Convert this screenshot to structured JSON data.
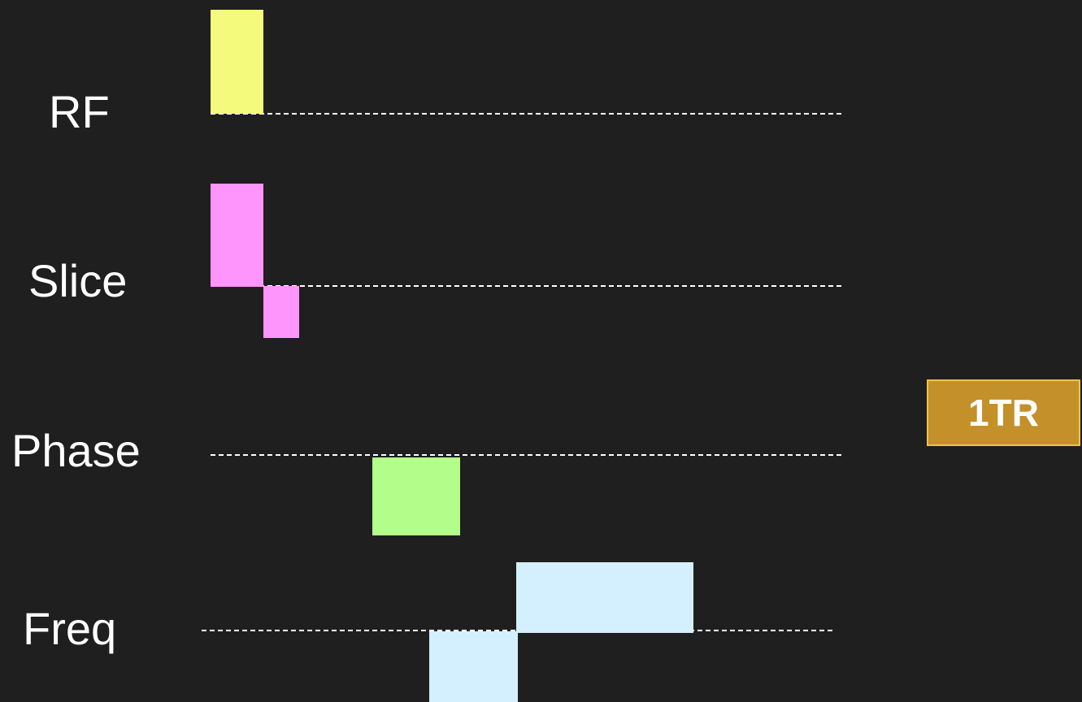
{
  "labels": {
    "rf": "RF",
    "slice": "Slice",
    "phase": "Phase",
    "freq": "Freq"
  },
  "badge": {
    "text": "1TR"
  },
  "colors": {
    "background": "#1f1f1f",
    "rf_pulse": "#f4fa7c",
    "slice_pulse": "#fe95fd",
    "phase_pulse": "#b3fd8b",
    "freq_pulse": "#d4f0fe",
    "badge_fill": "#c4902a",
    "badge_border": "#f0c24d",
    "baseline": "#ffffff"
  }
}
